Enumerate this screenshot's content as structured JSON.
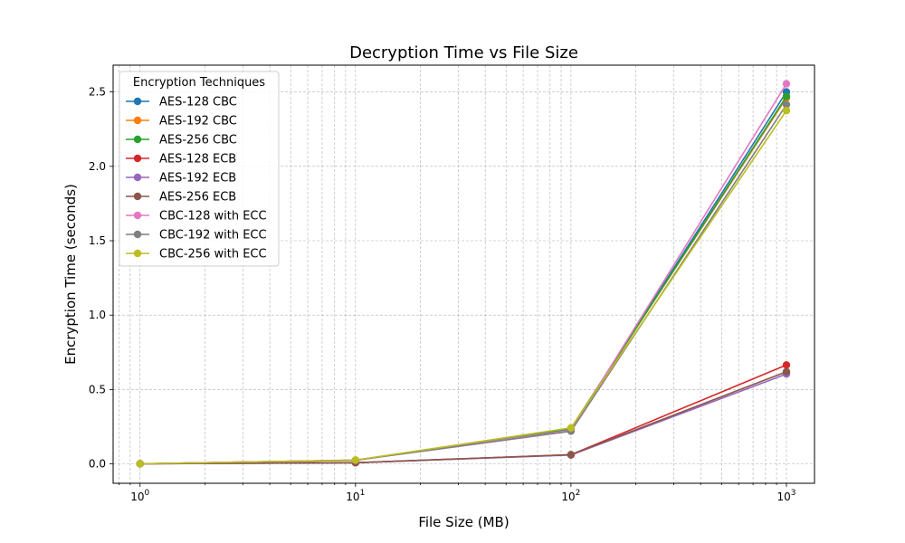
{
  "chart_data": {
    "type": "line",
    "title": "Decryption Time vs File Size",
    "xlabel": "File Size (MB)",
    "ylabel": "Encryption Time (seconds)",
    "xscale": "log",
    "xlim": [
      0.75,
      1350
    ],
    "ylim": [
      -0.13,
      2.68
    ],
    "x": [
      1,
      10,
      100,
      1000
    ],
    "x_tick_labels": [
      "10^0",
      "10^1",
      "10^2",
      "10^3"
    ],
    "y_ticks": [
      0.0,
      0.5,
      1.0,
      1.5,
      2.0,
      2.5
    ],
    "y_tick_labels": [
      "0.0",
      "0.5",
      "1.0",
      "1.5",
      "2.0",
      "2.5"
    ],
    "grid": true,
    "legend": {
      "title": "Encryption Techniques",
      "placement": "top-left"
    },
    "series": [
      {
        "name": "AES-128 CBC",
        "color": "#1f77b4",
        "values": [
          0.001,
          0.024,
          0.235,
          2.5
        ]
      },
      {
        "name": "AES-192 CBC",
        "color": "#ff7f0e",
        "values": [
          0.001,
          0.024,
          0.24,
          2.46
        ]
      },
      {
        "name": "AES-256 CBC",
        "color": "#2ca02c",
        "values": [
          0.001,
          0.025,
          0.238,
          2.47
        ]
      },
      {
        "name": "AES-128 ECB",
        "color": "#d62728",
        "values": [
          0.001,
          0.008,
          0.062,
          0.665
        ]
      },
      {
        "name": "AES-192 ECB",
        "color": "#9467bd",
        "values": [
          0.001,
          0.008,
          0.06,
          0.605
        ]
      },
      {
        "name": "AES-256 ECB",
        "color": "#8c564b",
        "values": [
          0.001,
          0.008,
          0.062,
          0.62
        ]
      },
      {
        "name": "CBC-128 with ECC",
        "color": "#e377c2",
        "values": [
          0.001,
          0.025,
          0.225,
          2.555
        ]
      },
      {
        "name": "CBC-192 with ECC",
        "color": "#7f7f7f",
        "values": [
          0.001,
          0.025,
          0.22,
          2.415
        ]
      },
      {
        "name": "CBC-256 with ECC",
        "color": "#bcbd22",
        "values": [
          0.001,
          0.026,
          0.242,
          2.375
        ]
      }
    ]
  }
}
